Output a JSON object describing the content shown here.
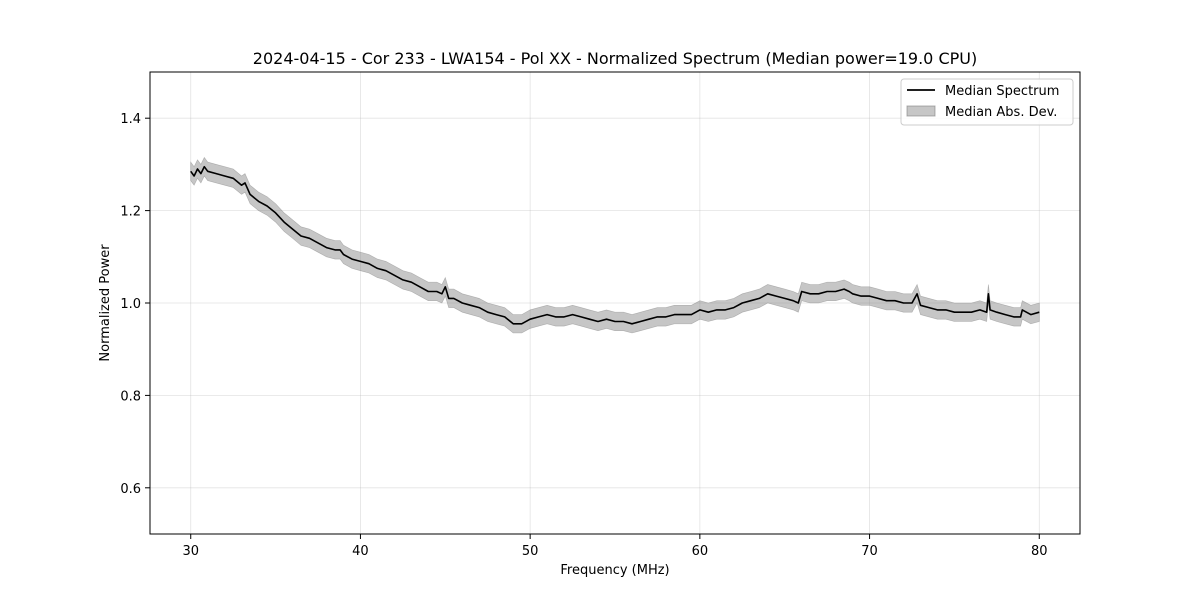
{
  "chart_data": {
    "type": "line",
    "title": "2024-04-15 - Cor 233 - LWA154 - Pol XX - Normalized Spectrum (Median power=19.0 CPU)",
    "xlabel": "Frequency (MHz)",
    "ylabel": "Normalized Power",
    "xlim": [
      27.6,
      82.4
    ],
    "ylim": [
      0.5,
      1.5
    ],
    "xticks": [
      30,
      40,
      50,
      60,
      70,
      80
    ],
    "yticks": [
      0.6,
      0.8,
      1.0,
      1.2,
      1.4
    ],
    "xtick_labels": [
      "30",
      "40",
      "50",
      "60",
      "70",
      "80"
    ],
    "ytick_labels": [
      "0.6",
      "0.8",
      "1.0",
      "1.2",
      "1.4"
    ],
    "grid": true,
    "legend_position": "top-right",
    "legend": [
      {
        "label": "Median Spectrum",
        "kind": "line",
        "color": "#000000"
      },
      {
        "label": "Median Abs. Dev.",
        "kind": "band",
        "color": "#808080"
      }
    ],
    "series": [
      {
        "name": "Median Spectrum",
        "x": [
          30.0,
          30.2,
          30.4,
          30.6,
          30.8,
          31.0,
          31.5,
          32.0,
          32.5,
          33.0,
          33.2,
          33.5,
          34.0,
          34.5,
          35.0,
          35.5,
          36.0,
          36.5,
          37.0,
          37.5,
          38.0,
          38.5,
          38.8,
          39.0,
          39.5,
          40.0,
          40.5,
          41.0,
          41.5,
          42.0,
          42.5,
          43.0,
          43.5,
          44.0,
          44.5,
          44.8,
          45.0,
          45.2,
          45.5,
          46.0,
          46.5,
          47.0,
          47.5,
          48.0,
          48.5,
          49.0,
          49.5,
          50.0,
          50.5,
          51.0,
          51.5,
          52.0,
          52.5,
          53.0,
          53.5,
          54.0,
          54.5,
          55.0,
          55.5,
          56.0,
          56.5,
          57.0,
          57.5,
          58.0,
          58.5,
          59.0,
          59.5,
          60.0,
          60.5,
          61.0,
          61.5,
          62.0,
          62.5,
          63.0,
          63.5,
          64.0,
          64.5,
          65.0,
          65.5,
          65.8,
          66.0,
          66.5,
          67.0,
          67.5,
          68.0,
          68.5,
          68.8,
          69.0,
          69.5,
          70.0,
          70.5,
          71.0,
          71.5,
          72.0,
          72.5,
          72.8,
          73.0,
          73.5,
          74.0,
          74.5,
          75.0,
          75.5,
          76.0,
          76.5,
          76.9,
          77.0,
          77.1,
          77.5,
          78.0,
          78.5,
          78.9,
          79.0,
          79.5,
          80.0
        ],
        "values": [
          1.285,
          1.275,
          1.29,
          1.28,
          1.295,
          1.285,
          1.28,
          1.275,
          1.27,
          1.255,
          1.26,
          1.235,
          1.22,
          1.21,
          1.195,
          1.175,
          1.16,
          1.145,
          1.14,
          1.13,
          1.12,
          1.115,
          1.115,
          1.105,
          1.095,
          1.09,
          1.085,
          1.075,
          1.07,
          1.06,
          1.05,
          1.045,
          1.035,
          1.025,
          1.025,
          1.02,
          1.035,
          1.01,
          1.01,
          1.0,
          0.995,
          0.99,
          0.98,
          0.975,
          0.97,
          0.955,
          0.955,
          0.965,
          0.97,
          0.975,
          0.97,
          0.97,
          0.975,
          0.97,
          0.965,
          0.96,
          0.965,
          0.96,
          0.96,
          0.955,
          0.96,
          0.965,
          0.97,
          0.97,
          0.975,
          0.975,
          0.975,
          0.985,
          0.98,
          0.985,
          0.985,
          0.99,
          1.0,
          1.005,
          1.01,
          1.02,
          1.015,
          1.01,
          1.005,
          1.0,
          1.025,
          1.02,
          1.02,
          1.025,
          1.025,
          1.03,
          1.025,
          1.02,
          1.015,
          1.015,
          1.01,
          1.005,
          1.005,
          1.0,
          1.0,
          1.02,
          0.995,
          0.99,
          0.985,
          0.985,
          0.98,
          0.98,
          0.98,
          0.985,
          0.98,
          1.02,
          0.985,
          0.98,
          0.975,
          0.97,
          0.97,
          0.985,
          0.975,
          0.98
        ]
      },
      {
        "name": "Median Abs. Dev.",
        "mad": 0.02
      }
    ]
  }
}
